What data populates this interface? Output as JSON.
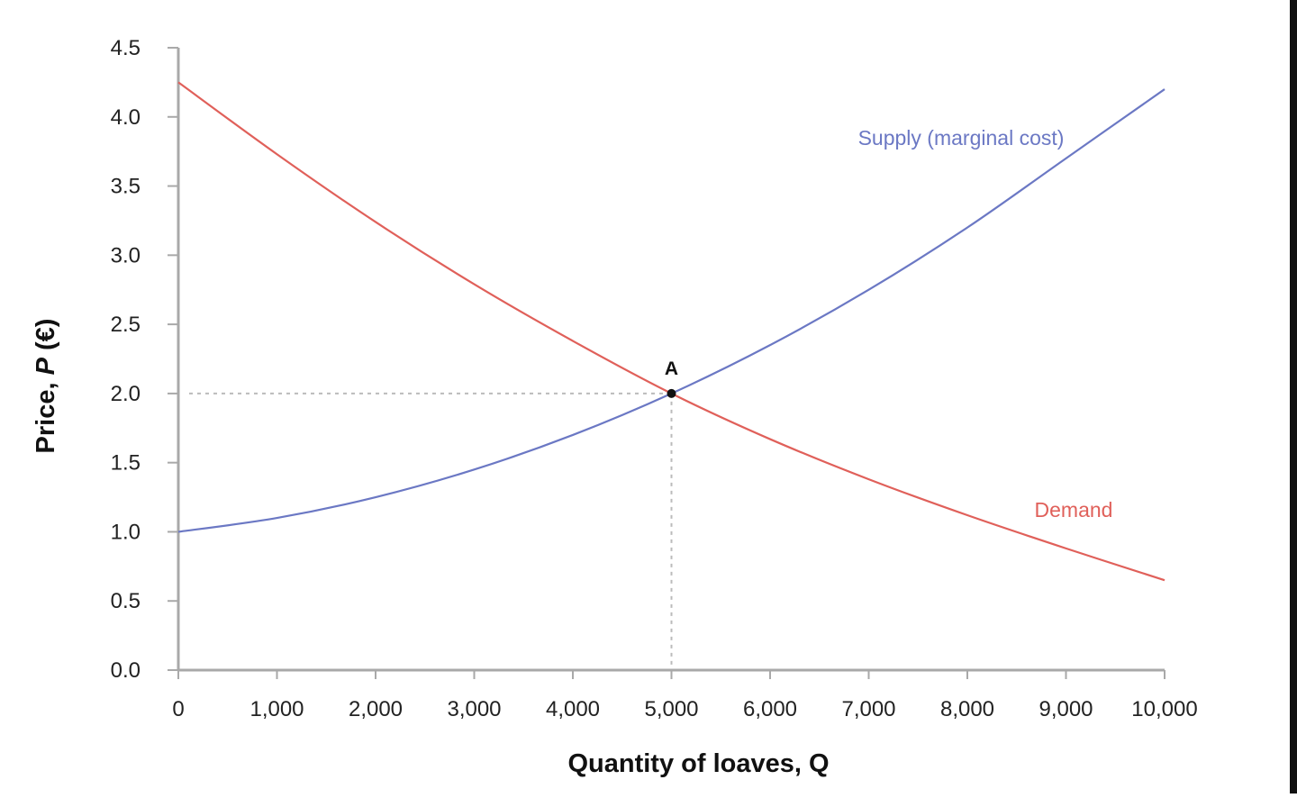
{
  "chart_data": {
    "type": "line",
    "xlabel": "Quantity of loaves, Q",
    "ylabel_prefix": "Price, ",
    "ylabel_var": "P",
    "ylabel_suffix": " (€)",
    "xlim": [
      0,
      10000
    ],
    "ylim": [
      0,
      4.5
    ],
    "x_ticks": [
      0,
      1000,
      2000,
      3000,
      4000,
      5000,
      6000,
      7000,
      8000,
      9000,
      10000
    ],
    "x_tick_labels": [
      "0",
      "1,000",
      "2,000",
      "3,000",
      "4,000",
      "5,000",
      "6,000",
      "7,000",
      "8,000",
      "9,000",
      "10,000"
    ],
    "y_ticks": [
      0,
      0.5,
      1,
      1.5,
      2,
      2.5,
      3,
      3.5,
      4,
      4.5
    ],
    "y_tick_labels": [
      "0.0",
      "0.5",
      "1.0",
      "1.5",
      "2.0",
      "2.5",
      "3.0",
      "3.5",
      "4.0",
      "4.5"
    ],
    "grid": false,
    "series": [
      {
        "name": "Supply (marginal cost)",
        "color": "#6b78c4",
        "x": [
          0,
          1000,
          2000,
          3000,
          4000,
          5000,
          6000,
          7000,
          8000,
          9000,
          10000
        ],
        "y": [
          1.0,
          1.1,
          1.25,
          1.45,
          1.7,
          2.0,
          2.35,
          2.75,
          3.2,
          3.7,
          4.2
        ]
      },
      {
        "name": "Demand",
        "color": "#e0605a",
        "x": [
          0,
          1000,
          2000,
          3000,
          4000,
          5000,
          6000,
          7000,
          8000,
          9000,
          10000
        ],
        "y": [
          4.25,
          3.73,
          3.24,
          2.79,
          2.38,
          2.0,
          1.67,
          1.38,
          1.12,
          0.88,
          0.65
        ]
      }
    ],
    "annotations": [
      {
        "label": "A",
        "x": 5000,
        "y": 2.0,
        "guides": "dotted",
        "guide_color": "#bbbbbb"
      }
    ]
  }
}
